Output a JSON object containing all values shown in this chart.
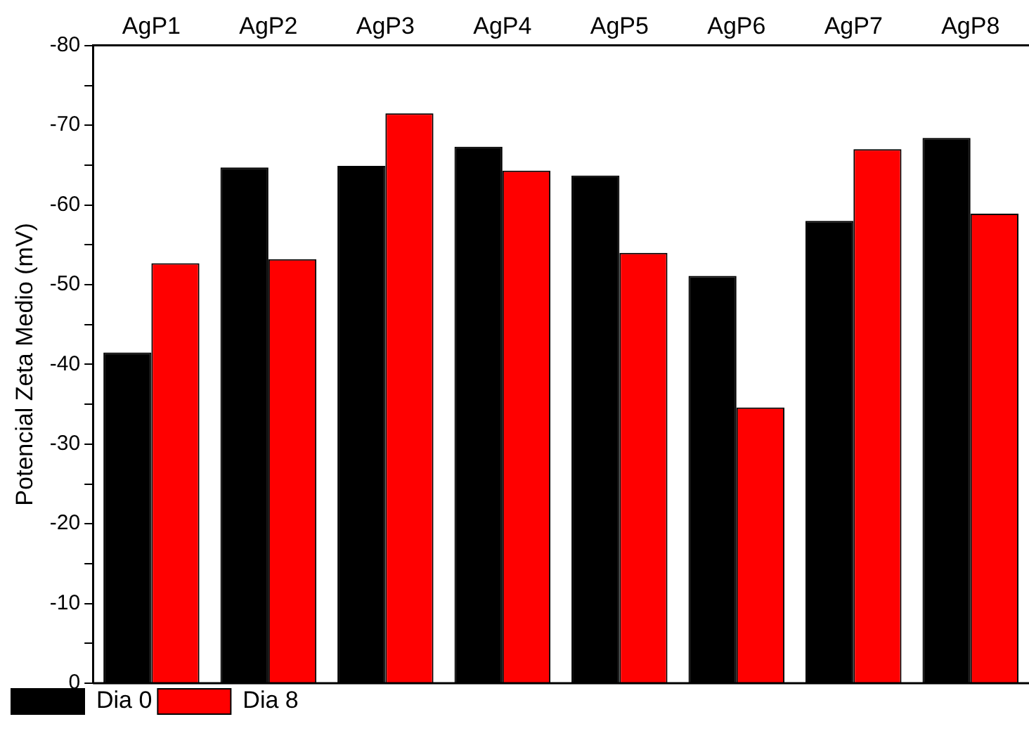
{
  "chart_data": {
    "type": "bar",
    "ylabel": "Potencial Zeta Medio (mV)",
    "categories": [
      "AgP1",
      "AgP2",
      "AgP3",
      "AgP4",
      "AgP5",
      "AgP6",
      "AgP7",
      "AgP8"
    ],
    "series": [
      {
        "name": "Dia 0",
        "color": "#000000",
        "values": [
          -41.5,
          -64.7,
          -64.9,
          -67.3,
          -63.7,
          -51.1,
          -58.0,
          -68.4
        ]
      },
      {
        "name": "Dia 8",
        "color": "#ff0000",
        "values": [
          -52.7,
          -53.2,
          -71.5,
          -64.3,
          -54.0,
          -34.6,
          -67.0,
          -58.9
        ]
      }
    ],
    "ylim": [
      0,
      -80
    ],
    "yticks": [
      0,
      {
        "value": -5,
        "label": null
      },
      -10,
      {
        "value": -15,
        "label": null
      },
      -20,
      {
        "value": -25,
        "label": null
      },
      -30,
      {
        "value": -35,
        "label": null
      },
      -40,
      {
        "value": -45,
        "label": null
      },
      -50,
      {
        "value": -55,
        "label": null
      },
      -60,
      {
        "value": -65,
        "label": null
      },
      -70,
      {
        "value": -75,
        "label": null
      },
      -80
    ],
    "grid": false,
    "legend": "bottom left"
  }
}
